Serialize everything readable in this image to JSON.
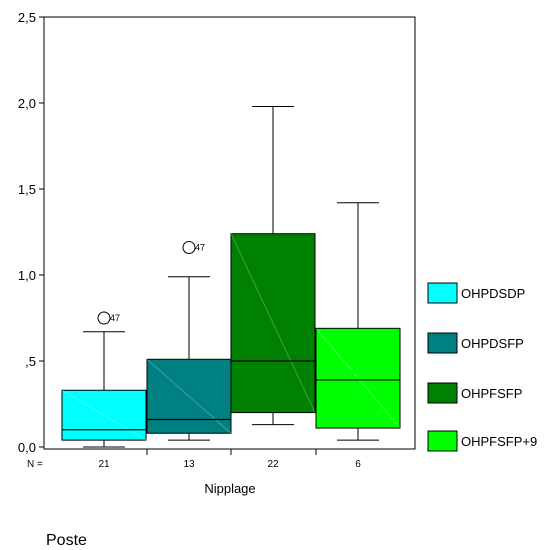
{
  "chart_data": {
    "type": "boxplot",
    "xlabel": "Nipplage",
    "ylabel": "",
    "ylim": [
      0,
      2.5
    ],
    "yticks": [
      {
        "value": 0.0,
        "label": "0,0"
      },
      {
        "value": 0.5,
        "label": ",5"
      },
      {
        "value": 1.0,
        "label": "1,0"
      },
      {
        "value": 1.5,
        "label": "1,5"
      },
      {
        "value": 2.0,
        "label": "2,0"
      },
      {
        "value": 2.5,
        "label": "2,5"
      }
    ],
    "n_prefix": "N =",
    "legend_position": "right",
    "grid": false,
    "boxes": [
      {
        "name": "OHPDSDP",
        "n": "21",
        "color": "#00ffff",
        "whisker_low": 0.0,
        "q1": 0.04,
        "median": 0.1,
        "q3": 0.33,
        "whisker_high": 0.67,
        "outliers": [
          {
            "value": 0.75,
            "label": "47"
          }
        ]
      },
      {
        "name": "OHPDSFP",
        "n": "13",
        "color": "#008080",
        "whisker_low": 0.04,
        "q1": 0.08,
        "median": 0.16,
        "q3": 0.51,
        "whisker_high": 0.99,
        "outliers": [
          {
            "value": 1.16,
            "label": "47"
          }
        ]
      },
      {
        "name": "OHPFSFP",
        "n": "22",
        "color": "#008000",
        "whisker_low": 0.13,
        "q1": 0.2,
        "median": 0.5,
        "q3": 1.24,
        "whisker_high": 1.98,
        "outliers": []
      },
      {
        "name": "OHPFSFP+9",
        "n": "6",
        "color": "#00ff00",
        "whisker_low": 0.04,
        "q1": 0.11,
        "median": 0.39,
        "q3": 0.69,
        "whisker_high": 1.42,
        "outliers": []
      }
    ]
  },
  "caption": "Poste"
}
